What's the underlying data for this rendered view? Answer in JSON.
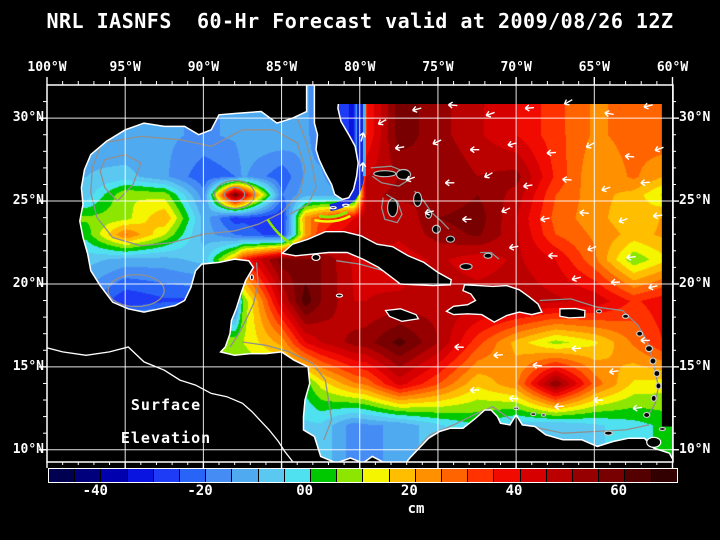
{
  "title": "NRL IASNFS  60-Hr Forecast valid at 2009/08/26 12Z",
  "map_overlay": {
    "line1": "Surface",
    "line2": "Elevation"
  },
  "axes": {
    "lon_ticks": [
      {
        "lon": -100,
        "label": "100°W"
      },
      {
        "lon": -95,
        "label": "95°W"
      },
      {
        "lon": -90,
        "label": "90°W"
      },
      {
        "lon": -85,
        "label": "85°W"
      },
      {
        "lon": -80,
        "label": "80°W"
      },
      {
        "lon": -75,
        "label": "75°W"
      },
      {
        "lon": -70,
        "label": "70°W"
      },
      {
        "lon": -65,
        "label": "65°W"
      },
      {
        "lon": -60,
        "label": "60°W"
      }
    ],
    "lat_ticks": [
      {
        "lat": 30,
        "label": "30°N"
      },
      {
        "lat": 25,
        "label": "25°N"
      },
      {
        "lat": 20,
        "label": "20°N"
      },
      {
        "lat": 15,
        "label": "15°N"
      },
      {
        "lat": 10,
        "label": "10°N"
      }
    ]
  },
  "colorbar": {
    "unit": "cm",
    "min": -50,
    "max": 70,
    "step": 5,
    "ticks": [
      {
        "value": -40,
        "label": "-40"
      },
      {
        "value": -20,
        "label": "-20"
      },
      {
        "value": 0,
        "label": "00"
      },
      {
        "value": 20,
        "label": "20"
      },
      {
        "value": 40,
        "label": "40"
      },
      {
        "value": 60,
        "label": "60"
      }
    ]
  },
  "chart_data": {
    "type": "heatmap",
    "title": "NRL IASNFS 60-Hr Forecast valid at 2009/08/26 12Z",
    "field": "Surface Elevation",
    "units": "cm",
    "lon_range": [
      -100,
      -60
    ],
    "lat_range": [
      9.3,
      32.0
    ],
    "grid_lines_deg": 5,
    "colormap": {
      "edges_min": -50,
      "edges_max": 70,
      "bin": 5,
      "colors": [
        "#000050",
        "#00007d",
        "#0000af",
        "#0a14e1",
        "#1e3cf5",
        "#2864f5",
        "#468cf5",
        "#50aaf0",
        "#5ac8f0",
        "#50e1f0",
        "#00c800",
        "#8ce600",
        "#f5f500",
        "#ffbe00",
        "#ff9100",
        "#ff6400",
        "#ff3200",
        "#f00a00",
        "#d70000",
        "#bb0000",
        "#960000",
        "#780000",
        "#550000",
        "#320000"
      ]
    },
    "grid": {
      "lons": [
        -100,
        -97.5,
        -95,
        -92.5,
        -90,
        -88,
        -87.5,
        -85,
        -83.5,
        -82.5,
        -80.4,
        -79.6,
        -77.5,
        -75,
        -72.5,
        -70,
        -67.5,
        -65,
        -62.5,
        -60
      ],
      "lats": [
        31.5,
        29,
        26.5,
        25.4,
        24,
        23,
        21.5,
        19,
        16.5,
        14,
        11.5,
        9.75
      ],
      "values": [
        [
          null,
          null,
          null,
          null,
          null,
          null,
          null,
          null,
          null,
          null,
          null,
          null,
          null,
          null,
          null,
          null,
          null,
          null,
          null,
          null
        ],
        [
          null,
          -12,
          -15,
          -14,
          -16,
          -14,
          -12,
          -10,
          -14,
          -18,
          -32,
          35,
          58,
          52,
          46,
          40,
          32,
          24,
          27,
          30
        ],
        [
          null,
          -10,
          -8,
          -14,
          -24,
          -20,
          -14,
          -24,
          -14,
          -14,
          -25,
          45,
          50,
          55,
          50,
          52,
          34,
          20,
          26,
          18
        ],
        [
          null,
          -8,
          10,
          8,
          -18,
          60,
          45,
          -20,
          -12,
          -12,
          -15,
          48,
          52,
          50,
          55,
          48,
          30,
          22,
          18,
          6
        ],
        [
          null,
          6,
          8,
          20,
          -12,
          -28,
          -26,
          -30,
          22,
          30,
          40,
          50,
          45,
          55,
          58,
          45,
          28,
          22,
          16,
          22
        ],
        [
          null,
          2,
          26,
          10,
          -12,
          -20,
          -22,
          -28,
          20,
          35,
          45,
          48,
          46,
          52,
          56,
          46,
          30,
          24,
          18,
          22
        ],
        [
          null,
          -8,
          -12,
          -12,
          -8,
          20,
          35,
          58,
          56,
          55,
          44,
          44,
          42,
          46,
          42,
          46,
          40,
          26,
          6,
          16
        ],
        [
          null,
          -18,
          -30,
          -26,
          null,
          null,
          5,
          45,
          63,
          55,
          45,
          45,
          46,
          48,
          null,
          null,
          46,
          44,
          34,
          40
        ],
        [
          null,
          null,
          null,
          null,
          null,
          null,
          10,
          22,
          40,
          45,
          52,
          53,
          62,
          50,
          32,
          18,
          8,
          14,
          26,
          38
        ],
        [
          null,
          null,
          null,
          null,
          null,
          null,
          null,
          null,
          2,
          12,
          24,
          26,
          42,
          30,
          16,
          24,
          55,
          28,
          14,
          12
        ],
        [
          null,
          null,
          null,
          null,
          null,
          null,
          null,
          null,
          null,
          -6,
          -18,
          -16,
          -14,
          -6,
          0,
          -8,
          -10,
          -6,
          -2,
          2
        ],
        [
          null,
          null,
          null,
          null,
          null,
          null,
          null,
          null,
          null,
          null,
          null,
          null,
          null,
          null,
          null,
          null,
          null,
          null,
          null,
          null
        ]
      ]
    },
    "vectors_dir_convention": "degrees clockwise from screen east",
    "vectors": [
      [
        -78.7,
        29.7,
        150
      ],
      [
        -76.5,
        30.5,
        165
      ],
      [
        -74.2,
        30.8,
        185
      ],
      [
        -71.8,
        30.2,
        160
      ],
      [
        -69.3,
        30.6,
        175
      ],
      [
        -66.8,
        30.9,
        150
      ],
      [
        -64.2,
        30.3,
        190
      ],
      [
        -61.7,
        30.7,
        165
      ],
      [
        -77.6,
        28.2,
        170
      ],
      [
        -75.2,
        28.5,
        155
      ],
      [
        -72.8,
        28.1,
        180
      ],
      [
        -70.4,
        28.4,
        165
      ],
      [
        -67.9,
        27.9,
        175
      ],
      [
        -65.4,
        28.3,
        150
      ],
      [
        -62.9,
        27.7,
        185
      ],
      [
        -61.0,
        28.1,
        160
      ],
      [
        -76.9,
        26.3,
        160
      ],
      [
        -74.4,
        26.1,
        180
      ],
      [
        -71.9,
        26.5,
        150
      ],
      [
        -69.4,
        25.9,
        170
      ],
      [
        -66.9,
        26.3,
        185
      ],
      [
        -64.4,
        25.7,
        160
      ],
      [
        -61.9,
        26.1,
        175
      ],
      [
        -75.7,
        24.3,
        165
      ],
      [
        -73.3,
        23.9,
        180
      ],
      [
        -70.8,
        24.4,
        155
      ],
      [
        -68.3,
        23.9,
        170
      ],
      [
        -65.8,
        24.3,
        185
      ],
      [
        -63.3,
        23.8,
        160
      ],
      [
        -61.1,
        24.1,
        172
      ],
      [
        -70.3,
        22.2,
        170
      ],
      [
        -67.8,
        21.7,
        182
      ],
      [
        -65.3,
        22.1,
        158
      ],
      [
        -62.8,
        21.6,
        174
      ],
      [
        -66.3,
        20.3,
        165
      ],
      [
        -63.8,
        20.1,
        178
      ],
      [
        -61.4,
        19.8,
        168
      ],
      [
        -73.8,
        16.2,
        182
      ],
      [
        -71.3,
        15.7,
        175
      ],
      [
        -68.8,
        15.1,
        186
      ],
      [
        -66.3,
        16.1,
        178
      ],
      [
        -63.9,
        14.7,
        172
      ],
      [
        -61.9,
        16.6,
        181
      ],
      [
        -72.8,
        13.6,
        179
      ],
      [
        -70.3,
        13.1,
        184
      ],
      [
        -67.4,
        12.6,
        176
      ],
      [
        -64.9,
        13.0,
        181
      ],
      [
        -62.4,
        12.5,
        173
      ],
      [
        -79.8,
        27.2,
        275
      ],
      [
        -79.8,
        29.0,
        285
      ]
    ]
  }
}
